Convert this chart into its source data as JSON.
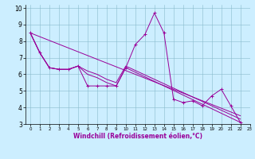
{
  "xlabel": "Windchill (Refroidissement éolien,°C)",
  "bg_color": "#cceeff",
  "line_color": "#990099",
  "xlim": [
    -0.5,
    23
  ],
  "ylim": [
    3,
    10.2
  ],
  "yticks": [
    3,
    4,
    5,
    6,
    7,
    8,
    9,
    10
  ],
  "xticks": [
    0,
    1,
    2,
    3,
    4,
    5,
    6,
    7,
    8,
    9,
    10,
    11,
    12,
    13,
    14,
    15,
    16,
    17,
    18,
    19,
    20,
    21,
    22,
    23
  ],
  "series": [
    {
      "x": [
        0,
        1,
        2,
        3,
        4,
        5,
        6,
        7,
        8,
        9,
        10,
        11,
        12,
        13,
        14,
        15,
        16,
        17,
        18,
        19,
        20,
        21,
        22
      ],
      "y": [
        8.5,
        7.3,
        6.4,
        6.3,
        6.3,
        6.5,
        5.3,
        5.3,
        5.3,
        5.3,
        6.4,
        7.8,
        8.4,
        9.7,
        8.5,
        4.5,
        4.3,
        4.4,
        4.1,
        4.7,
        5.1,
        4.1,
        3.1
      ],
      "markers": true
    },
    {
      "x": [
        0,
        1,
        2,
        3,
        4,
        5,
        6,
        7,
        8,
        9,
        10,
        22
      ],
      "y": [
        8.5,
        7.3,
        6.4,
        6.3,
        6.3,
        6.5,
        6.0,
        5.8,
        5.5,
        5.3,
        6.4,
        3.1
      ],
      "markers": false
    },
    {
      "x": [
        0,
        1,
        2,
        3,
        4,
        5,
        6,
        7,
        8,
        9,
        10,
        22
      ],
      "y": [
        8.5,
        7.3,
        6.4,
        6.3,
        6.3,
        6.5,
        6.2,
        6.0,
        5.7,
        5.5,
        6.5,
        3.3
      ],
      "markers": false
    },
    {
      "x": [
        0,
        22
      ],
      "y": [
        8.5,
        3.5
      ],
      "markers": false
    }
  ]
}
